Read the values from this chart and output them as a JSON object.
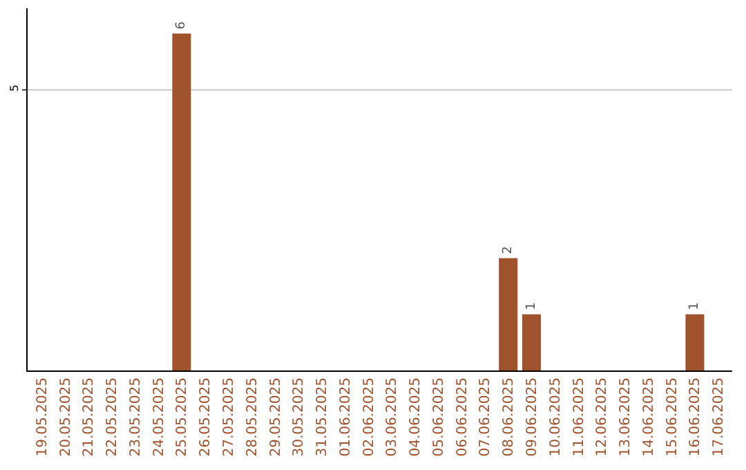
{
  "chart_data": {
    "type": "bar",
    "categories": [
      "19.05.2025",
      "20.05.2025",
      "21.05.2025",
      "22.05.2025",
      "23.05.2025",
      "24.05.2025",
      "25.05.2025",
      "26.05.2025",
      "27.05.2025",
      "28.05.2025",
      "29.05.2025",
      "30.05.2025",
      "31.05.2025",
      "01.06.2025",
      "02.06.2025",
      "03.06.2025",
      "04.06.2025",
      "05.06.2025",
      "06.06.2025",
      "07.06.2025",
      "08.06.2025",
      "09.06.2025",
      "10.06.2025",
      "11.06.2025",
      "12.06.2025",
      "13.06.2025",
      "14.06.2025",
      "15.06.2025",
      "16.06.2025",
      "17.06.2025"
    ],
    "values": [
      0,
      0,
      0,
      0,
      0,
      0,
      6,
      0,
      0,
      0,
      0,
      0,
      0,
      0,
      0,
      0,
      0,
      0,
      0,
      0,
      2,
      1,
      0,
      0,
      0,
      0,
      0,
      0,
      1,
      0
    ],
    "value_labels": [
      null,
      null,
      null,
      null,
      null,
      null,
      "6",
      null,
      null,
      null,
      null,
      null,
      null,
      null,
      null,
      null,
      null,
      null,
      null,
      null,
      "2",
      "1",
      null,
      null,
      null,
      null,
      null,
      null,
      "1",
      null
    ],
    "color": "#a0522d",
    "ylim": [
      0,
      6.45
    ],
    "yticks": [
      5
    ],
    "grid": "y"
  }
}
